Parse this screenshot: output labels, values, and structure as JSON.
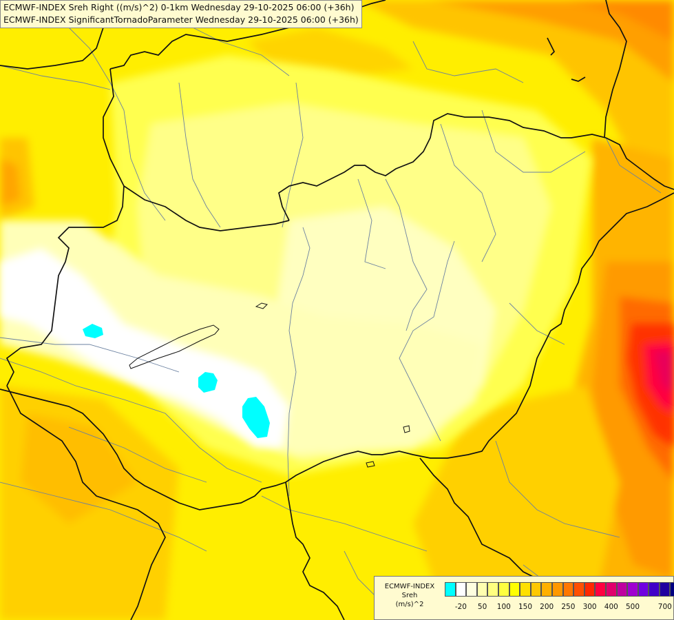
{
  "header": {
    "line1": "ECMWF-INDEX Sreh Right ((m/s)^2) 0-1km Wednesday 29-10-2025 06:00 (+36h)",
    "line2": "ECMWF-INDEX SignificantTornadoParameter Wednesday 29-10-2025 06:00 (+36h)"
  },
  "legend": {
    "line1": "ECMWF-INDEX",
    "line2": "Sreh",
    "line3": "(m/s)^2",
    "colors": [
      "#00ffff",
      "#ffffff",
      "#ffffe0",
      "#ffffb0",
      "#ffff80",
      "#ffff40",
      "#ffff00",
      "#ffe000",
      "#ffc800",
      "#ffb000",
      "#ff9800",
      "#ff7800",
      "#ff5000",
      "#ff2800",
      "#ff0040",
      "#e0006c",
      "#c000a0",
      "#a000d0",
      "#7000e0",
      "#4000c8",
      "#2000a0",
      "#000080"
    ],
    "ticks": [
      "-20",
      "50",
      "100",
      "150",
      "200",
      "250",
      "300",
      "400",
      "500",
      "700"
    ]
  },
  "map": {
    "background_color": "#ffff66",
    "low_color": "#ffffff",
    "cyan_color": "#00ffff",
    "high_color": "#ff3300",
    "peak_color": "#e8005a"
  }
}
